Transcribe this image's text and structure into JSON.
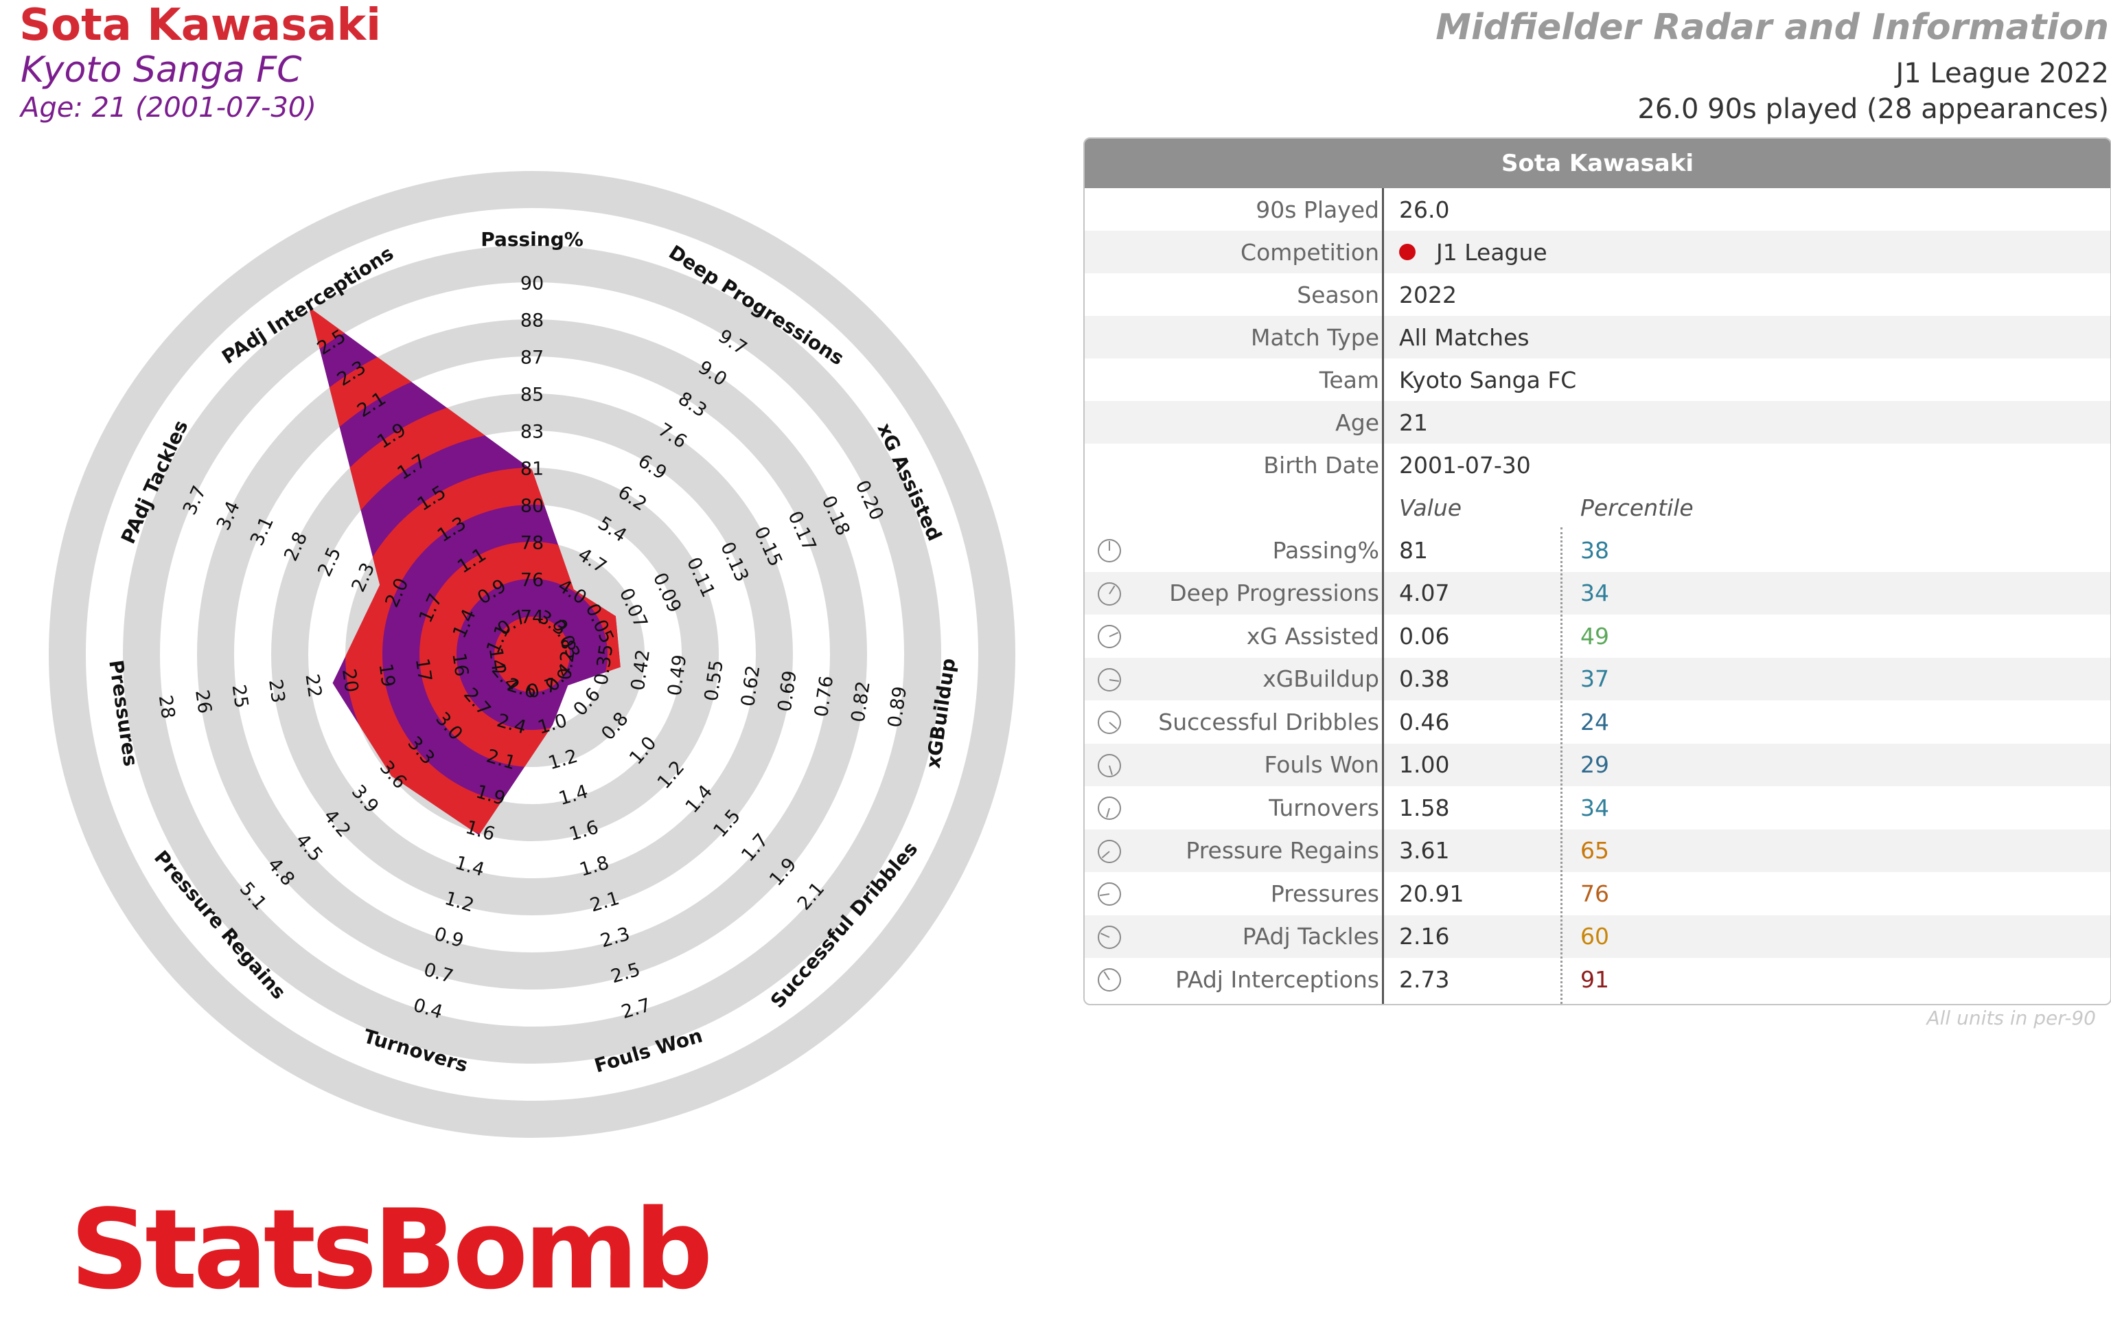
{
  "header": {
    "player_name": "Sota Kawasaki",
    "club": "Kyoto Sanga FC",
    "age_line": "Age: 21 (2001-07-30)",
    "report_title": "Midfielder Radar and Information",
    "league_season": "J1 League 2022",
    "minutes_line": "26.0 90s played (28 appearances)"
  },
  "colors": {
    "name_red": "#d42a34",
    "club_purple": "#7b1d8e",
    "radar_red": "#e0262d",
    "radar_purple": "#7a1488",
    "ring_gray": "#d9d9d9",
    "pct_blue": "#2f7f9a",
    "pct_green": "#5ba85a",
    "pct_orange": "#c8780a",
    "pct_darkred": "#8e1b1b",
    "logo_red": "#e11b22"
  },
  "chart_data": {
    "type": "radar",
    "rings": 6,
    "metrics": [
      {
        "name": "Passing%",
        "value": 81,
        "ticks": [
          "74",
          "76",
          "78",
          "80",
          "81",
          "83",
          "85",
          "87",
          "88",
          "90"
        ]
      },
      {
        "name": "Deep Progressions",
        "value": 4.07,
        "ticks": [
          "3.3",
          "4.0",
          "4.7",
          "5.4",
          "6.2",
          "6.9",
          "7.6",
          "8.3",
          "9.0",
          "9.7"
        ]
      },
      {
        "name": "xG Assisted",
        "value": 0.06,
        "ticks": [
          "0.03",
          "0.05",
          "0.07",
          "0.09",
          "0.11",
          "0.13",
          "0.15",
          "0.17",
          "0.18",
          "0.20"
        ]
      },
      {
        "name": "xGBuildup",
        "value": 0.38,
        "ticks": [
          "0.28",
          "0.35",
          "0.42",
          "0.49",
          "0.55",
          "0.62",
          "0.69",
          "0.76",
          "0.82",
          "0.89"
        ]
      },
      {
        "name": "Successful Dribbles",
        "value": 0.46,
        "ticks": [
          "0.4",
          "0.6",
          "0.8",
          "1.0",
          "1.2",
          "1.4",
          "1.5",
          "1.7",
          "1.9",
          "2.1"
        ]
      },
      {
        "name": "Fouls Won",
        "value": 1.0,
        "ticks": [
          "0.7",
          "1.0",
          "1.2",
          "1.4",
          "1.6",
          "1.8",
          "2.1",
          "2.3",
          "2.5",
          "2.7"
        ]
      },
      {
        "name": "Turnovers",
        "value": 1.58,
        "reversed": true,
        "ticks": [
          "2.6",
          "2.4",
          "2.1",
          "1.9",
          "1.6",
          "1.4",
          "1.2",
          "0.9",
          "0.7",
          "0.4"
        ]
      },
      {
        "name": "Pressure Regains",
        "value": 3.61,
        "ticks": [
          "2.4",
          "2.7",
          "3.0",
          "3.3",
          "3.6",
          "3.9",
          "4.2",
          "4.5",
          "4.8",
          "5.1"
        ]
      },
      {
        "name": "Pressures",
        "value": 20.91,
        "ticks": [
          "14",
          "16",
          "17",
          "19",
          "20",
          "22",
          "23",
          "25",
          "26",
          "28"
        ]
      },
      {
        "name": "PAdj Tackles",
        "value": 2.16,
        "ticks": [
          "1.1",
          "1.4",
          "1.7",
          "2.0",
          "2.3",
          "2.5",
          "2.8",
          "3.1",
          "3.4",
          "3.7"
        ]
      },
      {
        "name": "PAdj Interceptions",
        "value": 2.73,
        "ticks": [
          "0.7",
          "0.9",
          "1.1",
          "1.3",
          "1.5",
          "1.7",
          "1.9",
          "2.1",
          "2.3",
          "2.5"
        ]
      }
    ]
  },
  "table": {
    "title": "Sota Kawasaki",
    "info_rows": [
      {
        "label": "90s Played",
        "value": "26.0"
      },
      {
        "label": "Competition",
        "value": "J1 League",
        "flag": true
      },
      {
        "label": "Season",
        "value": "2022"
      },
      {
        "label": "Match Type",
        "value": "All Matches"
      },
      {
        "label": "Team",
        "value": "Kyoto Sanga FC"
      },
      {
        "label": "Age",
        "value": "21"
      },
      {
        "label": "Birth Date",
        "value": "2001-07-30"
      }
    ],
    "col_value": "Value",
    "col_percentile": "Percentile",
    "stats": [
      {
        "label": "Passing%",
        "value": "81",
        "percentile": "38",
        "color": "#2f7f9a"
      },
      {
        "label": "Deep Progressions",
        "value": "4.07",
        "percentile": "34",
        "color": "#2f7f9a"
      },
      {
        "label": "xG Assisted",
        "value": "0.06",
        "percentile": "49",
        "color": "#5ba85a"
      },
      {
        "label": "xGBuildup",
        "value": "0.38",
        "percentile": "37",
        "color": "#2f7f9a"
      },
      {
        "label": "Successful Dribbles",
        "value": "0.46",
        "percentile": "24",
        "color": "#2f6a8e"
      },
      {
        "label": "Fouls Won",
        "value": "1.00",
        "percentile": "29",
        "color": "#2f6a8e"
      },
      {
        "label": "Turnovers",
        "value": "1.58",
        "percentile": "34",
        "color": "#2f7f9a"
      },
      {
        "label": "Pressure Regains",
        "value": "3.61",
        "percentile": "65",
        "color": "#c8780a"
      },
      {
        "label": "Pressures",
        "value": "20.91",
        "percentile": "76",
        "color": "#b8601a"
      },
      {
        "label": "PAdj Tackles",
        "value": "2.16",
        "percentile": "60",
        "color": "#c8860a"
      },
      {
        "label": "PAdj Interceptions",
        "value": "2.73",
        "percentile": "91",
        "color": "#8e1b1b"
      }
    ]
  },
  "footnote": "All units in per-90",
  "logo_text": "StatsBomb"
}
